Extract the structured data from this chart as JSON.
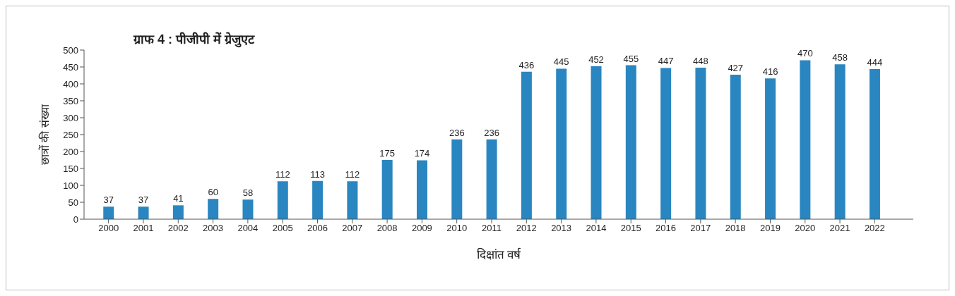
{
  "chart_data": {
    "type": "bar",
    "title": "ग्राफ 4 : पीजीपी में ग्रेजुएट",
    "xlabel": "दिक्षांत वर्ष",
    "ylabel": "छात्रों की संख्या",
    "categories": [
      "2000",
      "2001",
      "2002",
      "2003",
      "2004",
      "2005",
      "2006",
      "2007",
      "2008",
      "2009",
      "2010",
      "2011",
      "2012",
      "2013",
      "2014",
      "2015",
      "2016",
      "2017",
      "2018",
      "2019",
      "2020",
      "2021",
      "2022"
    ],
    "values": [
      37,
      37,
      41,
      60,
      58,
      112,
      113,
      112,
      175,
      174,
      236,
      236,
      436,
      445,
      452,
      455,
      447,
      448,
      427,
      416,
      470,
      458,
      444
    ],
    "color": "#2a86c0",
    "ylim": [
      0,
      500
    ],
    "yticks": [
      0,
      50,
      100,
      150,
      200,
      250,
      300,
      350,
      400,
      450,
      500
    ],
    "data_labels": true,
    "grid": false,
    "legend": false
  }
}
